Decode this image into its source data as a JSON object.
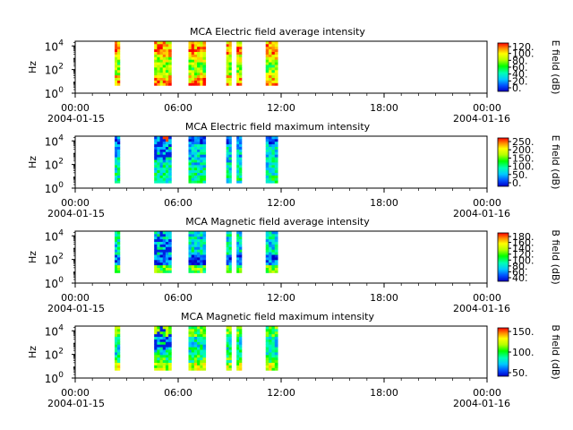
{
  "chart_data": [
    {
      "type": "heatmap",
      "title": "MCA  Electric field average intensity",
      "ylabel": "Hz",
      "y_scale": "log",
      "y_ticks": [
        "10",
        "10",
        "10"
      ],
      "y_tick_exp": [
        "0",
        "2",
        "4"
      ],
      "x_ticks": [
        "00:00",
        "06:00",
        "12:00",
        "18:00",
        "00:00"
      ],
      "x_dates": [
        "2004-01-15",
        "2004-01-16"
      ],
      "colorbar_label": "E field (dB)",
      "colorbar_ticks": [
        "120.",
        "100.",
        "80.",
        "60.",
        "40.",
        "20.",
        "0."
      ],
      "data_intervals_hours": [
        [
          2.3,
          2.6
        ],
        [
          4.6,
          5.6
        ],
        [
          6.6,
          7.6
        ],
        [
          8.8,
          9.1
        ],
        [
          9.4,
          9.7
        ],
        [
          11.1,
          11.8
        ]
      ],
      "value_range": [
        0,
        128
      ]
    },
    {
      "type": "heatmap",
      "title": "MCA  Electric field maximum intensity",
      "ylabel": "Hz",
      "y_scale": "log",
      "y_ticks": [
        "10",
        "10",
        "10"
      ],
      "y_tick_exp": [
        "0",
        "2",
        "4"
      ],
      "x_ticks": [
        "00:00",
        "06:00",
        "12:00",
        "18:00",
        "00:00"
      ],
      "x_dates": [
        "2004-01-15",
        "2004-01-16"
      ],
      "colorbar_label": "E field (dB)",
      "colorbar_ticks": [
        "250.",
        "200.",
        "150.",
        "100.",
        "50.",
        "0."
      ],
      "data_intervals_hours": [
        [
          2.3,
          2.6
        ],
        [
          4.6,
          5.6
        ],
        [
          6.6,
          7.6
        ],
        [
          8.8,
          9.1
        ],
        [
          9.4,
          9.7
        ],
        [
          11.1,
          11.8
        ]
      ],
      "value_range": [
        0,
        260
      ]
    },
    {
      "type": "heatmap",
      "title": "MCA  Magnetic field average intensity",
      "ylabel": "Hz",
      "y_scale": "log",
      "y_ticks": [
        "10",
        "10",
        "10"
      ],
      "y_tick_exp": [
        "0",
        "2",
        "4"
      ],
      "x_ticks": [
        "00:00",
        "06:00",
        "12:00",
        "18:00",
        "00:00"
      ],
      "x_dates": [
        "2004-01-15",
        "2004-01-16"
      ],
      "colorbar_label": "B field (dB)",
      "colorbar_ticks": [
        "180.",
        "160.",
        "140.",
        "120.",
        "100.",
        "80.",
        "60.",
        "40."
      ],
      "data_intervals_hours": [
        [
          2.3,
          2.6
        ],
        [
          4.6,
          5.6
        ],
        [
          6.6,
          7.6
        ],
        [
          8.8,
          9.1
        ],
        [
          9.4,
          9.7
        ],
        [
          11.1,
          11.8
        ]
      ],
      "value_range": [
        40,
        185
      ]
    },
    {
      "type": "heatmap",
      "title": "MCA  Magnetic field maximum intensity",
      "ylabel": "Hz",
      "y_scale": "log",
      "y_ticks": [
        "10",
        "10",
        "10"
      ],
      "y_tick_exp": [
        "0",
        "2",
        "4"
      ],
      "x_ticks": [
        "00:00",
        "06:00",
        "12:00",
        "18:00",
        "00:00"
      ],
      "x_dates": [
        "2004-01-15",
        "2004-01-16"
      ],
      "colorbar_label": "B field (dB)",
      "colorbar_ticks": [
        "150.",
        "100.",
        "50."
      ],
      "data_intervals_hours": [
        [
          2.3,
          2.6
        ],
        [
          4.6,
          5.6
        ],
        [
          6.6,
          7.6
        ],
        [
          8.8,
          9.1
        ],
        [
          9.4,
          9.7
        ],
        [
          11.1,
          11.8
        ]
      ],
      "value_range": [
        0,
        190
      ]
    }
  ]
}
